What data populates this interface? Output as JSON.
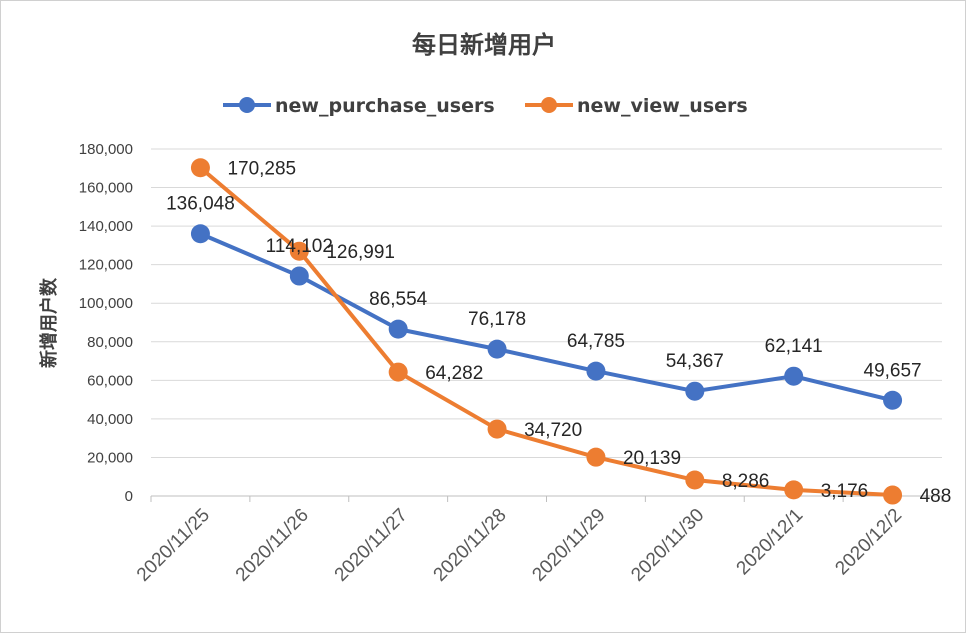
{
  "chart_data": {
    "type": "line",
    "title": "每日新增用户",
    "xlabel": "",
    "ylabel": "新增用户数",
    "categories": [
      "2020/11/25",
      "2020/11/26",
      "2020/11/27",
      "2020/11/28",
      "2020/11/29",
      "2020/11/30",
      "2020/12/1",
      "2020/12/2"
    ],
    "ylim": [
      0,
      180000
    ],
    "yticks": [
      0,
      20000,
      40000,
      60000,
      80000,
      100000,
      120000,
      140000,
      160000,
      180000
    ],
    "ytick_labels": [
      "0",
      "20,000",
      "40,000",
      "60,000",
      "80,000",
      "100,000",
      "120,000",
      "140,000",
      "160,000",
      "180,000"
    ],
    "grid": true,
    "legend_position": "top",
    "series": [
      {
        "name": "new_purchase_users",
        "color": "#4472C4",
        "values": [
          136048,
          114102,
          86554,
          76178,
          64785,
          54367,
          62141,
          49657
        ],
        "data_labels": [
          "136,048",
          "114,102",
          "86,554",
          "76,178",
          "64,785",
          "54,367",
          "62,141",
          "49,657"
        ]
      },
      {
        "name": "new_view_users",
        "color": "#ED7D31",
        "values": [
          170285,
          126991,
          64282,
          34720,
          20139,
          8286,
          3176,
          488
        ],
        "data_labels": [
          "170,285",
          "126,991",
          "64,282",
          "34,720",
          "20,139",
          "8,286",
          "3,176",
          "488"
        ]
      }
    ]
  }
}
